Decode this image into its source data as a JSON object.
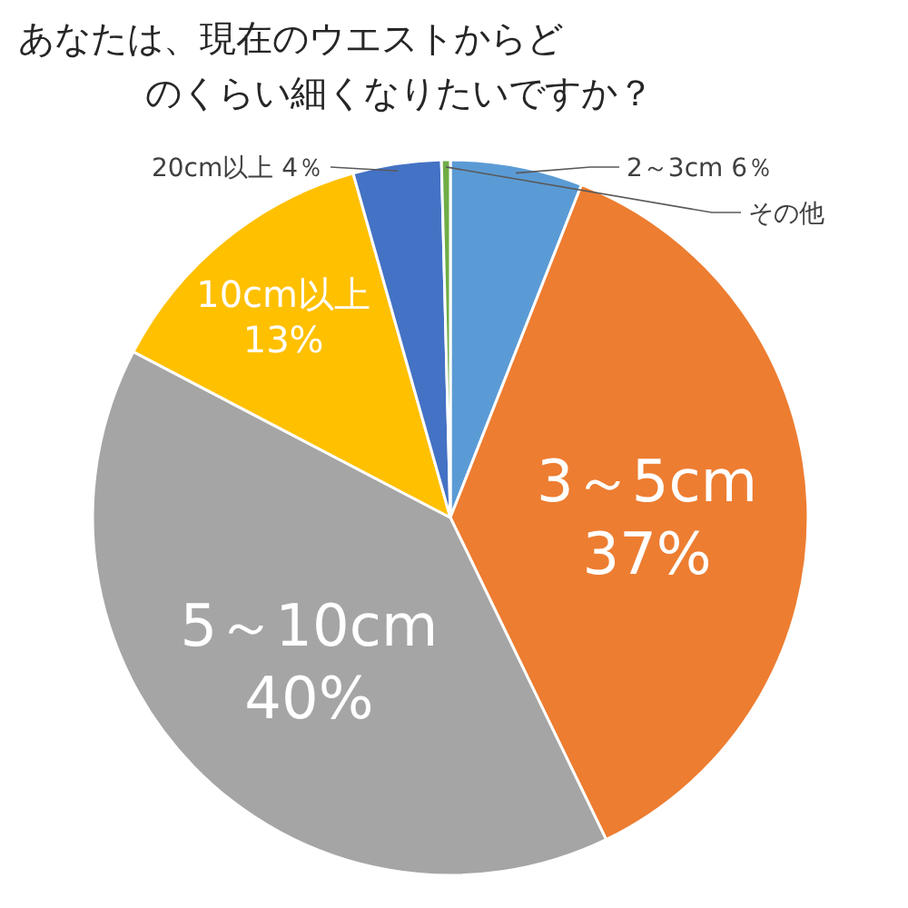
{
  "chart_data": {
    "type": "pie",
    "title": "あなたは、現在のウエストからどのくらい細くなりたいですか？",
    "categories": [
      "2～3cm",
      "3～5cm",
      "5～10cm",
      "10cm以上",
      "20cm以上",
      "その他"
    ],
    "values": [
      6,
      37,
      40,
      13,
      4,
      0.4
    ],
    "value_labels": [
      "6％",
      "37%",
      "40%",
      "13%",
      "4％",
      null
    ],
    "colors": [
      "#5b9bd5",
      "#ed7d31",
      "#a5a5a5",
      "#ffc000",
      "#4472c4",
      "#70ad47"
    ]
  }
}
